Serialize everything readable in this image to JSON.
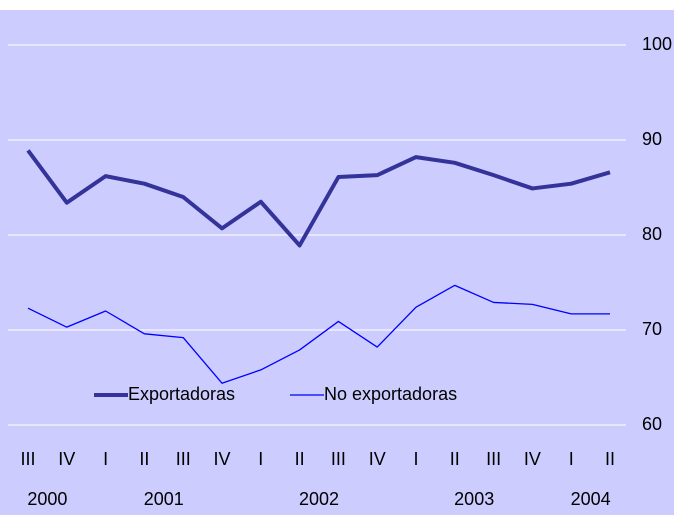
{
  "chart_data": {
    "type": "line",
    "categories": [
      "III",
      "IV",
      "I",
      "II",
      "III",
      "IV",
      "I",
      "II",
      "III",
      "IV",
      "I",
      "II",
      "III",
      "IV",
      "I",
      "II"
    ],
    "years": [
      "2000",
      "2001",
      "2002",
      "2003",
      "2004"
    ],
    "series": [
      {
        "name": "Exportadoras",
        "color": "#333399",
        "values": [
          88.9,
          83.4,
          86.2,
          85.4,
          84.0,
          80.7,
          83.5,
          78.9,
          86.1,
          86.3,
          88.2,
          87.6,
          86.3,
          84.9,
          85.4,
          86.6
        ]
      },
      {
        "name": "No exportadoras",
        "color": "#0000ff",
        "values": [
          72.3,
          70.3,
          72.0,
          69.6,
          69.2,
          64.4,
          65.8,
          67.9,
          70.9,
          68.2,
          72.4,
          74.7,
          72.9,
          72.7,
          71.7,
          71.7
        ]
      }
    ],
    "ylim": [
      60,
      100
    ],
    "yticks": [
      60,
      70,
      80,
      90,
      100
    ],
    "grid": true
  }
}
